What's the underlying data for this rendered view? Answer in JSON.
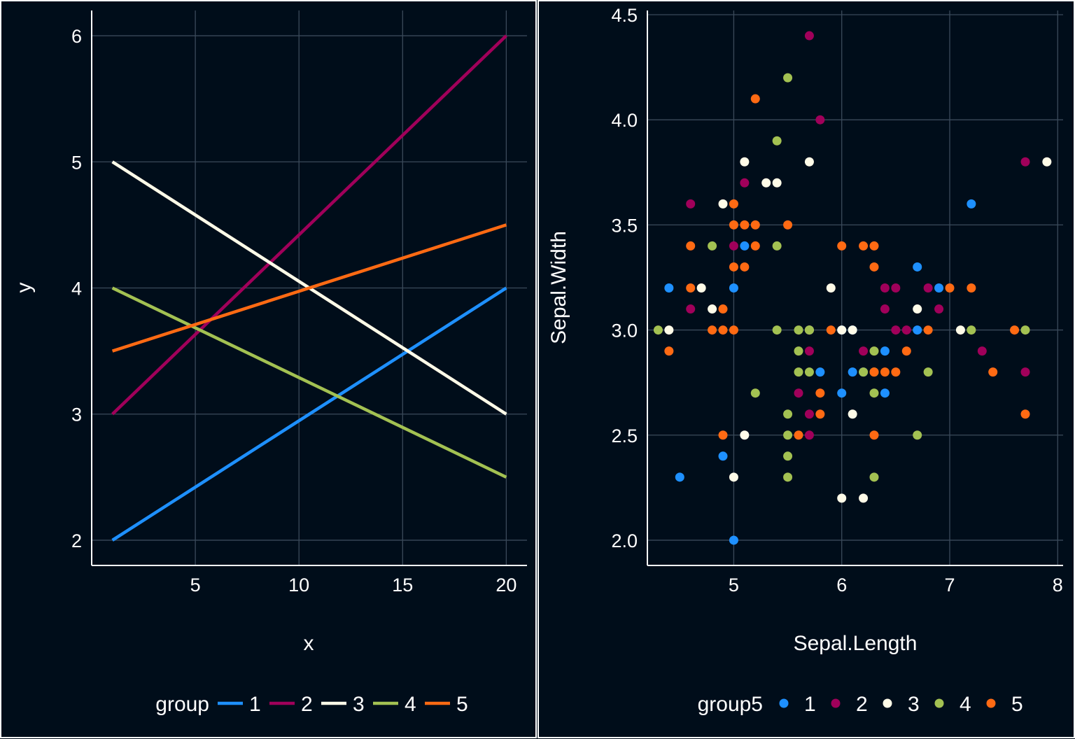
{
  "colors": {
    "background": "#000d1a",
    "grid": "#3b4a5a",
    "text": "#ffffff",
    "g1": "#1e90ff",
    "g2": "#a0005a",
    "g3": "#fffbe8",
    "g4": "#a3c152",
    "g5": "#ff6a13"
  },
  "chart_data": [
    {
      "type": "line",
      "title": "",
      "xlabel": "x",
      "ylabel": "y",
      "xlim": [
        0,
        21
      ],
      "ylim": [
        1.8,
        6.2
      ],
      "xticks": [
        5,
        10,
        15,
        20
      ],
      "yticks": [
        2,
        3,
        4,
        5,
        6
      ],
      "grid": true,
      "legend": {
        "title": "group",
        "placement": "bottom",
        "entries": [
          "1",
          "2",
          "3",
          "4",
          "5"
        ]
      },
      "series": [
        {
          "name": "1",
          "color": "#1e90ff",
          "x": [
            1,
            20
          ],
          "y": [
            2,
            4
          ]
        },
        {
          "name": "2",
          "color": "#a0005a",
          "x": [
            1,
            20
          ],
          "y": [
            3,
            6
          ]
        },
        {
          "name": "3",
          "color": "#fffbe8",
          "x": [
            1,
            20
          ],
          "y": [
            5,
            3
          ]
        },
        {
          "name": "4",
          "color": "#a3c152",
          "x": [
            1,
            20
          ],
          "y": [
            4,
            2.5
          ]
        },
        {
          "name": "5",
          "color": "#ff6a13",
          "x": [
            1,
            20
          ],
          "y": [
            3.5,
            4.5
          ]
        }
      ]
    },
    {
      "type": "scatter",
      "title": "",
      "xlabel": "Sepal.Length",
      "ylabel": "Sepal.Width",
      "xlim": [
        4.2,
        8.05
      ],
      "ylim": [
        1.88,
        4.52
      ],
      "xticks": [
        5,
        6,
        7,
        8
      ],
      "yticks": [
        "2.0",
        "2.5",
        "3.0",
        "3.5",
        "4.0",
        "4.5"
      ],
      "grid": true,
      "legend": {
        "title": "group5",
        "placement": "bottom",
        "entries": [
          "1",
          "2",
          "3",
          "4",
          "5"
        ]
      },
      "series": [
        {
          "name": "1",
          "color": "#1e90ff",
          "points": [
            [
              4.4,
              3.2
            ],
            [
              5.0,
              3.2
            ],
            [
              5.1,
              3.4
            ],
            [
              6.7,
              3.3
            ],
            [
              6.9,
              3.2
            ],
            [
              7.2,
              3.6
            ],
            [
              6.0,
              3.0
            ],
            [
              6.1,
              2.8
            ],
            [
              6.1,
              3.0
            ],
            [
              6.2,
              2.8
            ],
            [
              6.4,
              2.9
            ],
            [
              6.0,
              2.7
            ],
            [
              6.4,
              2.7
            ],
            [
              5.8,
              2.8
            ],
            [
              6.7,
              3.0
            ],
            [
              4.9,
              2.4
            ],
            [
              4.5,
              2.3
            ],
            [
              5.0,
              2.0
            ]
          ]
        },
        {
          "name": "2",
          "color": "#a0005a",
          "points": [
            [
              5.7,
              4.4
            ],
            [
              5.8,
              4.0
            ],
            [
              5.1,
              3.7
            ],
            [
              4.6,
              3.6
            ],
            [
              5.0,
              3.4
            ],
            [
              4.6,
              3.1
            ],
            [
              5.7,
              2.9
            ],
            [
              5.6,
              2.7
            ],
            [
              5.7,
              2.6
            ],
            [
              5.7,
              2.5
            ],
            [
              6.2,
              2.9
            ],
            [
              6.4,
              3.2
            ],
            [
              6.5,
              3.2
            ],
            [
              6.4,
              3.1
            ],
            [
              6.5,
              3.0
            ],
            [
              6.6,
              3.0
            ],
            [
              6.8,
              3.2
            ],
            [
              6.9,
              3.1
            ],
            [
              7.3,
              2.9
            ],
            [
              7.7,
              3.8
            ],
            [
              7.7,
              2.8
            ]
          ]
        },
        {
          "name": "3",
          "color": "#fffbe8",
          "points": [
            [
              4.4,
              3.0
            ],
            [
              4.7,
              3.2
            ],
            [
              4.8,
              3.1
            ],
            [
              4.9,
              3.6
            ],
            [
              5.1,
              3.8
            ],
            [
              5.3,
              3.7
            ],
            [
              5.4,
              3.7
            ],
            [
              5.7,
              3.8
            ],
            [
              5.7,
              3.0
            ],
            [
              5.9,
              3.2
            ],
            [
              6.0,
              3.0
            ],
            [
              6.1,
              3.0
            ],
            [
              6.7,
              3.1
            ],
            [
              7.1,
              3.0
            ],
            [
              7.9,
              3.8
            ],
            [
              5.1,
              2.5
            ],
            [
              5.0,
              2.3
            ],
            [
              6.1,
              2.6
            ],
            [
              6.0,
              2.2
            ],
            [
              6.2,
              2.2
            ]
          ]
        },
        {
          "name": "4",
          "color": "#a3c152",
          "points": [
            [
              4.3,
              3.0
            ],
            [
              4.8,
              3.4
            ],
            [
              5.4,
              3.9
            ],
            [
              5.5,
              4.2
            ],
            [
              5.4,
              3.4
            ],
            [
              5.4,
              3.0
            ],
            [
              5.6,
              3.0
            ],
            [
              5.7,
              3.0
            ],
            [
              5.6,
              2.9
            ],
            [
              5.6,
              2.8
            ],
            [
              5.7,
              2.8
            ],
            [
              5.2,
              2.7
            ],
            [
              5.5,
              2.6
            ],
            [
              5.5,
              2.5
            ],
            [
              5.5,
              2.4
            ],
            [
              5.5,
              2.3
            ],
            [
              6.2,
              2.8
            ],
            [
              6.3,
              2.9
            ],
            [
              6.3,
              2.8
            ],
            [
              6.3,
              2.7
            ],
            [
              6.3,
              2.3
            ],
            [
              6.7,
              2.5
            ],
            [
              6.8,
              2.8
            ],
            [
              7.2,
              3.0
            ],
            [
              7.7,
              3.0
            ]
          ]
        },
        {
          "name": "5",
          "color": "#ff6a13",
          "points": [
            [
              5.2,
              4.1
            ],
            [
              5.0,
              3.6
            ],
            [
              5.0,
              3.5
            ],
            [
              5.1,
              3.5
            ],
            [
              5.2,
              3.5
            ],
            [
              5.5,
              3.5
            ],
            [
              4.6,
              3.4
            ],
            [
              5.2,
              3.4
            ],
            [
              5.0,
              3.3
            ],
            [
              5.1,
              3.3
            ],
            [
              4.6,
              3.2
            ],
            [
              4.8,
              3.0
            ],
            [
              4.9,
              3.0
            ],
            [
              5.0,
              3.0
            ],
            [
              4.9,
              3.1
            ],
            [
              4.4,
              2.9
            ],
            [
              4.9,
              2.5
            ],
            [
              5.6,
              2.5
            ],
            [
              5.8,
              2.7
            ],
            [
              5.8,
              2.6
            ],
            [
              6.0,
              3.4
            ],
            [
              6.2,
              3.4
            ],
            [
              6.3,
              3.4
            ],
            [
              6.3,
              3.3
            ],
            [
              5.9,
              3.0
            ],
            [
              6.3,
              2.8
            ],
            [
              6.4,
              2.8
            ],
            [
              6.5,
              2.8
            ],
            [
              6.6,
              2.9
            ],
            [
              6.8,
              3.0
            ],
            [
              7.0,
              3.2
            ],
            [
              7.2,
              3.2
            ],
            [
              7.4,
              2.8
            ],
            [
              7.6,
              3.0
            ],
            [
              7.7,
              2.6
            ],
            [
              6.3,
              2.5
            ]
          ]
        }
      ]
    }
  ]
}
